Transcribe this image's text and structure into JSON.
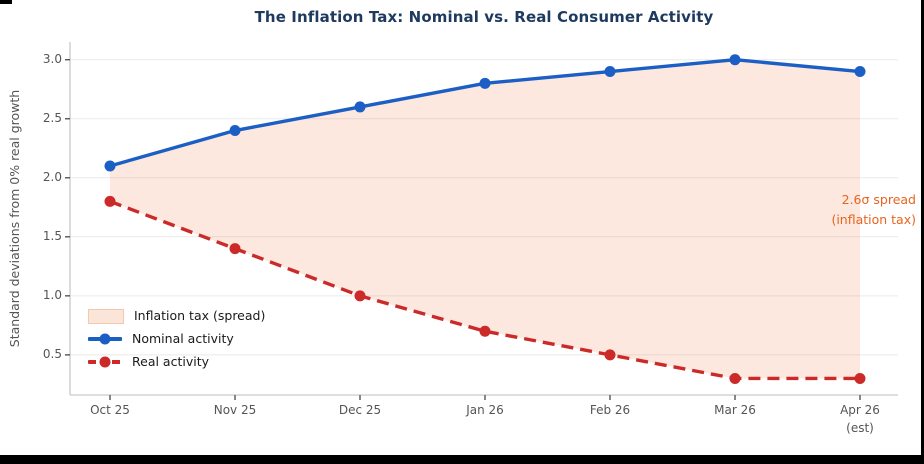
{
  "title": "The Inflation Tax: Nominal vs. Real Consumer Activity",
  "title_color": "#1e3a5f",
  "ylabel": "Standard deviations from 0% real growth",
  "annotation": {
    "line1": "2.6σ spread",
    "line2": "(inflation tax)",
    "color": "#e8641f"
  },
  "legend": {
    "items": [
      {
        "label": "Inflation tax (spread)",
        "swatch": "area"
      },
      {
        "label": "Nominal activity",
        "swatch": "line-solid"
      },
      {
        "label": "Real activity",
        "swatch": "line-dashed"
      }
    ],
    "position": "lower left"
  },
  "chart_data": {
    "type": "line",
    "title": "The Inflation Tax: Nominal vs. Real Consumer Activity",
    "xlabel": "",
    "ylabel": "Standard deviations from 0% real growth",
    "categories": [
      "Oct 25",
      "Nov 25",
      "Dec 25",
      "Jan 26",
      "Feb 26",
      "Mar 26",
      "Apr 26"
    ],
    "x_note": {
      "label": "(est)",
      "applies_to": "Apr 26"
    },
    "series": [
      {
        "name": "Nominal activity",
        "values": [
          2.1,
          2.4,
          2.6,
          2.8,
          2.9,
          3.0,
          2.9
        ],
        "color": "#1b5fc5",
        "style": "solid",
        "marker": "circle"
      },
      {
        "name": "Real activity",
        "values": [
          1.8,
          1.4,
          1.0,
          0.7,
          0.5,
          0.3,
          0.3
        ],
        "color": "#cc2a28",
        "style": "dashed",
        "marker": "circle"
      }
    ],
    "fill_between": {
      "label": "Inflation tax (spread)",
      "color": "#e8641f",
      "opacity": 0.15,
      "spread_sigma": 2.6
    },
    "yticks": [
      0.5,
      1.0,
      1.5,
      2.0,
      2.5,
      3.0
    ],
    "ytick_labels": [
      "0.5",
      "1.0",
      "1.5",
      "2.0",
      "2.5",
      "3.0"
    ],
    "ylim": [
      0.16,
      3.15
    ],
    "grid": "horizontal",
    "gridline_color": "#eaeaea",
    "spine_color": "#c9c9c9",
    "tick_color": "#555555",
    "legend_position": "lower left"
  }
}
